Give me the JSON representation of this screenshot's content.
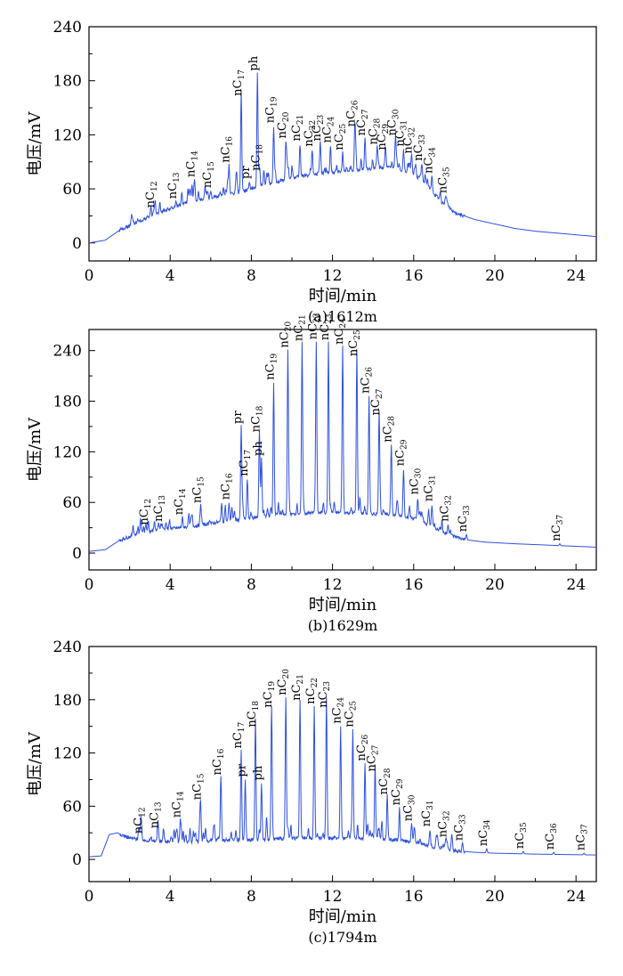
{
  "chart_data": [
    {
      "type": "line",
      "caption": "(a)1612m",
      "xlabel": "时间/min",
      "ylabel": "电压/mV",
      "xlim": [
        0,
        25
      ],
      "ylim": [
        -20,
        240
      ],
      "x_ticks": [
        0,
        4,
        8,
        12,
        16,
        20,
        24
      ],
      "y_ticks": [
        0,
        60,
        120,
        180,
        240
      ],
      "line_color": "#2f50e0",
      "baseline": [
        [
          0,
          0
        ],
        [
          0.8,
          3
        ],
        [
          1.5,
          14
        ],
        [
          2.5,
          24
        ],
        [
          3.2,
          32
        ],
        [
          4,
          38
        ],
        [
          5,
          46
        ],
        [
          6,
          50
        ],
        [
          7,
          54
        ],
        [
          8,
          60
        ],
        [
          9,
          66
        ],
        [
          10,
          72
        ],
        [
          11,
          76
        ],
        [
          12,
          78
        ],
        [
          13,
          80
        ],
        [
          14,
          83
        ],
        [
          15,
          84
        ],
        [
          15.8,
          78
        ],
        [
          16.4,
          70
        ],
        [
          16.8,
          60
        ],
        [
          17.4,
          45
        ],
        [
          18,
          34
        ],
        [
          19,
          26
        ],
        [
          20,
          21
        ],
        [
          21,
          16
        ],
        [
          22,
          13
        ],
        [
          23,
          11
        ],
        [
          24,
          9
        ],
        [
          25,
          7
        ]
      ],
      "peaks": [
        {
          "x": 3.2,
          "y": 36,
          "label": "nC12"
        },
        {
          "x": 4.3,
          "y": 46,
          "label": "nC13"
        },
        {
          "x": 5.2,
          "y": 70,
          "label": "nC14"
        },
        {
          "x": 6.0,
          "y": 58,
          "label": "nC15"
        },
        {
          "x": 6.9,
          "y": 86,
          "label": "nC16"
        },
        {
          "x": 7.5,
          "y": 160,
          "label": "nC17"
        },
        {
          "x": 7.9,
          "y": 68,
          "label": "pr"
        },
        {
          "x": 8.4,
          "y": 77,
          "label": "nC18"
        },
        {
          "x": 8.3,
          "y": 188,
          "label": "ph"
        },
        {
          "x": 9.1,
          "y": 130,
          "label": "nC19"
        },
        {
          "x": 9.7,
          "y": 113,
          "label": "nC20"
        },
        {
          "x": 10.4,
          "y": 110,
          "label": "nC21"
        },
        {
          "x": 11.0,
          "y": 104,
          "label": "nC22"
        },
        {
          "x": 11.4,
          "y": 110,
          "label": "nC23"
        },
        {
          "x": 11.9,
          "y": 108,
          "label": "nC24"
        },
        {
          "x": 12.5,
          "y": 100,
          "label": "nC25"
        },
        {
          "x": 13.1,
          "y": 126,
          "label": "nC26"
        },
        {
          "x": 13.6,
          "y": 116,
          "label": "nC27"
        },
        {
          "x": 14.2,
          "y": 106,
          "label": "nC28"
        },
        {
          "x": 14.6,
          "y": 100,
          "label": "nC29"
        },
        {
          "x": 15.1,
          "y": 116,
          "label": "nC30"
        },
        {
          "x": 15.5,
          "y": 104,
          "label": "nC31"
        },
        {
          "x": 15.9,
          "y": 96,
          "label": "nC32"
        },
        {
          "x": 16.4,
          "y": 88,
          "label": "nC33"
        },
        {
          "x": 16.9,
          "y": 74,
          "label": "nC34"
        },
        {
          "x": 17.6,
          "y": 52,
          "label": "nC35"
        }
      ]
    },
    {
      "type": "line",
      "caption": "(b)1629m",
      "xlabel": "时间/min",
      "ylabel": "电压/mV",
      "xlim": [
        0,
        25
      ],
      "ylim": [
        -20,
        265
      ],
      "x_ticks": [
        0,
        4,
        8,
        12,
        16,
        20,
        24
      ],
      "y_ticks": [
        0,
        60,
        120,
        180,
        240
      ],
      "line_color": "#2f50e0",
      "baseline": [
        [
          0,
          2
        ],
        [
          0.8,
          4
        ],
        [
          1.5,
          15
        ],
        [
          2.5,
          24
        ],
        [
          3.5,
          28
        ],
        [
          4.5,
          30
        ],
        [
          5.5,
          33
        ],
        [
          6.5,
          37
        ],
        [
          7.5,
          40
        ],
        [
          8.5,
          43
        ],
        [
          9.5,
          45
        ],
        [
          10.5,
          47
        ],
        [
          11.5,
          48
        ],
        [
          12.5,
          48
        ],
        [
          13.5,
          47
        ],
        [
          14.5,
          46
        ],
        [
          15.5,
          44
        ],
        [
          16.2,
          40
        ],
        [
          16.8,
          33
        ],
        [
          17.5,
          24
        ],
        [
          18.5,
          16
        ],
        [
          19.5,
          13
        ],
        [
          21,
          11
        ],
        [
          23,
          9
        ],
        [
          25,
          7
        ]
      ],
      "peaks": [
        {
          "x": 2.9,
          "y": 30,
          "label": "nC12"
        },
        {
          "x": 3.6,
          "y": 34,
          "label": "nC13"
        },
        {
          "x": 4.6,
          "y": 42,
          "label": "nC14"
        },
        {
          "x": 5.5,
          "y": 56,
          "label": "nC15"
        },
        {
          "x": 6.9,
          "y": 60,
          "label": "nC16"
        },
        {
          "x": 7.5,
          "y": 150,
          "label": "pr"
        },
        {
          "x": 7.8,
          "y": 88,
          "label": "nC17"
        },
        {
          "x": 8.4,
          "y": 140,
          "label": "nC18"
        },
        {
          "x": 8.5,
          "y": 112,
          "label": "ph"
        },
        {
          "x": 9.1,
          "y": 202,
          "label": "nC19"
        },
        {
          "x": 9.8,
          "y": 240,
          "label": "nC20"
        },
        {
          "x": 10.5,
          "y": 248,
          "label": "nC21"
        },
        {
          "x": 11.2,
          "y": 250,
          "label": "nC22"
        },
        {
          "x": 11.8,
          "y": 249,
          "label": "nC23"
        },
        {
          "x": 12.5,
          "y": 244,
          "label": "nC24"
        },
        {
          "x": 13.2,
          "y": 230,
          "label": "nC25"
        },
        {
          "x": 13.8,
          "y": 186,
          "label": "nC26"
        },
        {
          "x": 14.3,
          "y": 160,
          "label": "nC27"
        },
        {
          "x": 14.9,
          "y": 128,
          "label": "nC28"
        },
        {
          "x": 15.5,
          "y": 100,
          "label": "nC29"
        },
        {
          "x": 16.2,
          "y": 66,
          "label": "nC30"
        },
        {
          "x": 16.9,
          "y": 58,
          "label": "nC31"
        },
        {
          "x": 17.7,
          "y": 34,
          "label": "nC32"
        },
        {
          "x": 18.6,
          "y": 22,
          "label": "nC33"
        },
        {
          "x": 23.2,
          "y": 11,
          "label": "nC37"
        }
      ]
    },
    {
      "type": "line",
      "caption": "(c)1794m",
      "xlabel": "时间/min",
      "ylabel": "电压/mV",
      "xlim": [
        0,
        25
      ],
      "ylim": [
        -25,
        240
      ],
      "x_ticks": [
        0,
        4,
        8,
        12,
        16,
        20,
        24
      ],
      "y_ticks": [
        0,
        60,
        120,
        180,
        240
      ],
      "line_color": "#2f50e0",
      "baseline": [
        [
          0,
          3
        ],
        [
          0.6,
          4
        ],
        [
          1.0,
          28
        ],
        [
          1.4,
          30
        ],
        [
          2,
          24
        ],
        [
          3,
          21
        ],
        [
          4,
          20
        ],
        [
          5,
          20
        ],
        [
          6,
          21
        ],
        [
          7,
          22
        ],
        [
          8,
          22
        ],
        [
          9,
          23
        ],
        [
          10,
          24
        ],
        [
          11,
          24
        ],
        [
          12,
          24
        ],
        [
          13,
          24
        ],
        [
          14,
          23
        ],
        [
          15,
          22
        ],
        [
          16,
          20
        ],
        [
          17,
          14
        ],
        [
          18,
          10
        ],
        [
          19,
          8
        ],
        [
          20,
          7
        ],
        [
          22,
          6
        ],
        [
          25,
          5
        ]
      ],
      "peaks": [
        {
          "x": 2.6,
          "y": 26,
          "label": "nC12"
        },
        {
          "x": 3.4,
          "y": 32,
          "label": "nC13"
        },
        {
          "x": 4.5,
          "y": 44,
          "label": "nC14"
        },
        {
          "x": 5.5,
          "y": 64,
          "label": "nC15"
        },
        {
          "x": 6.5,
          "y": 92,
          "label": "nC16"
        },
        {
          "x": 7.5,
          "y": 122,
          "label": "nC17"
        },
        {
          "x": 7.7,
          "y": 90,
          "label": "pr"
        },
        {
          "x": 8.2,
          "y": 146,
          "label": "nC18"
        },
        {
          "x": 8.5,
          "y": 86,
          "label": "ph"
        },
        {
          "x": 9.0,
          "y": 168,
          "label": "nC19"
        },
        {
          "x": 9.7,
          "y": 182,
          "label": "nC20"
        },
        {
          "x": 10.4,
          "y": 176,
          "label": "nC21"
        },
        {
          "x": 11.1,
          "y": 172,
          "label": "nC22"
        },
        {
          "x": 11.7,
          "y": 168,
          "label": "nC23"
        },
        {
          "x": 12.4,
          "y": 150,
          "label": "nC24"
        },
        {
          "x": 13.0,
          "y": 146,
          "label": "nC25"
        },
        {
          "x": 13.6,
          "y": 108,
          "label": "nC26"
        },
        {
          "x": 14.1,
          "y": 96,
          "label": "nC27"
        },
        {
          "x": 14.7,
          "y": 70,
          "label": "nC28"
        },
        {
          "x": 15.3,
          "y": 58,
          "label": "nC29"
        },
        {
          "x": 15.9,
          "y": 40,
          "label": "nC30"
        },
        {
          "x": 16.8,
          "y": 34,
          "label": "nC31"
        },
        {
          "x": 17.6,
          "y": 22,
          "label": "nC32"
        },
        {
          "x": 18.4,
          "y": 18,
          "label": "nC33"
        },
        {
          "x": 19.6,
          "y": 12,
          "label": "nC34"
        },
        {
          "x": 21.4,
          "y": 9,
          "label": "nC35"
        },
        {
          "x": 22.9,
          "y": 8,
          "label": "nC36"
        },
        {
          "x": 24.4,
          "y": 7,
          "label": "nC37"
        }
      ]
    }
  ]
}
